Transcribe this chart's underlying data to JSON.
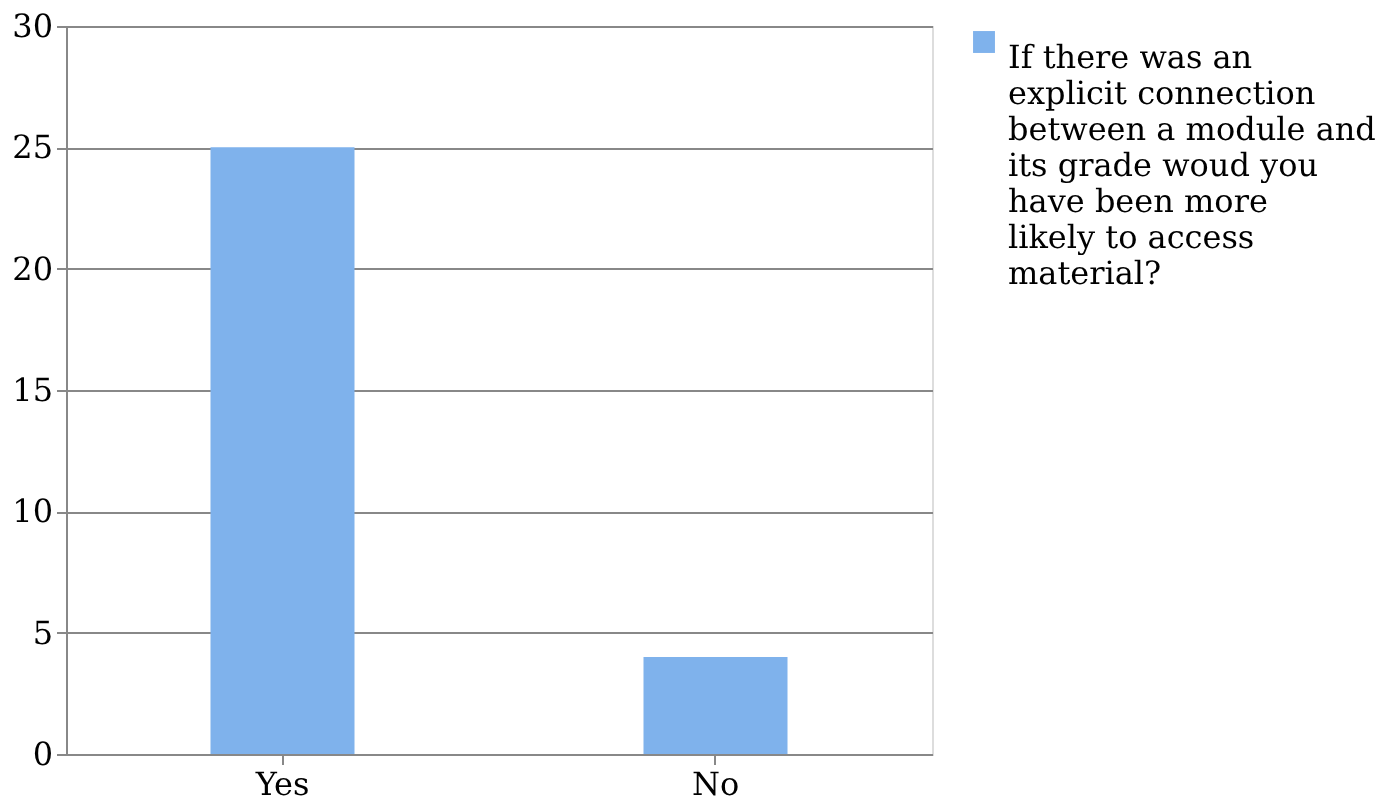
{
  "chart_data": {
    "type": "bar",
    "categories": [
      "Yes",
      "No"
    ],
    "series": [
      {
        "name": "If there was an explicit connection between a module and its grade woud you have been more likely to access material?",
        "color": "#7fb2ec",
        "values": [
          25,
          4
        ]
      }
    ],
    "ylim": [
      0,
      30
    ],
    "yticks": [
      0,
      5,
      10,
      15,
      20,
      25,
      30
    ],
    "grid": "y",
    "legend": "right"
  }
}
